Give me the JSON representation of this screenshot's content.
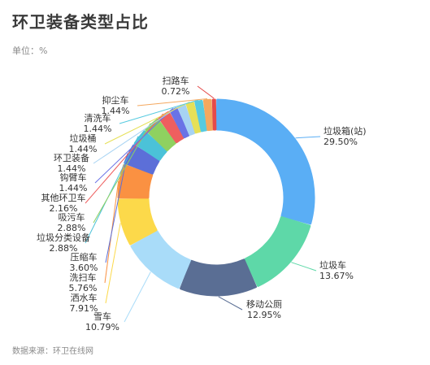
{
  "title": "环卫装备类型占比",
  "unit_label": "单位：%",
  "source_label": "数据来源：环卫在线网",
  "chart_data": {
    "type": "pie",
    "variant": "donut",
    "categories": [
      "垃圾箱(站)",
      "垃圾车",
      "移动公厕",
      "雪车",
      "洒水车",
      "洗扫车",
      "压缩车",
      "垃圾分类设备",
      "吸污车",
      "其他环卫车",
      "钩臂车",
      "环卫装备",
      "垃圾桶",
      "清洗车",
      "抑尘车",
      "扫路车"
    ],
    "values": [
      29.5,
      13.67,
      12.95,
      10.79,
      7.91,
      5.76,
      3.6,
      2.88,
      2.88,
      2.16,
      1.44,
      1.44,
      1.44,
      1.44,
      1.44,
      0.72
    ],
    "value_labels": [
      "29.50%",
      "13.67%",
      "12.95%",
      "10.79%",
      "7.91%",
      "5.76%",
      "3.60%",
      "2.88%",
      "2.88%",
      "2.16%",
      "1.44%",
      "1.44%",
      "1.44%",
      "1.44%",
      "1.44%",
      "0.72%"
    ],
    "colors": [
      "#5aaef5",
      "#5ed8a8",
      "#5a6e94",
      "#a9dcf9",
      "#fcd94a",
      "#fa9142",
      "#5c6fd8",
      "#4bc2d8",
      "#8fd160",
      "#ee5f5f",
      "#6a73e6",
      "#a7d3f3",
      "#e6e057",
      "#56cae0",
      "#f4a85f",
      "#e54a4a"
    ],
    "legend": "none"
  }
}
